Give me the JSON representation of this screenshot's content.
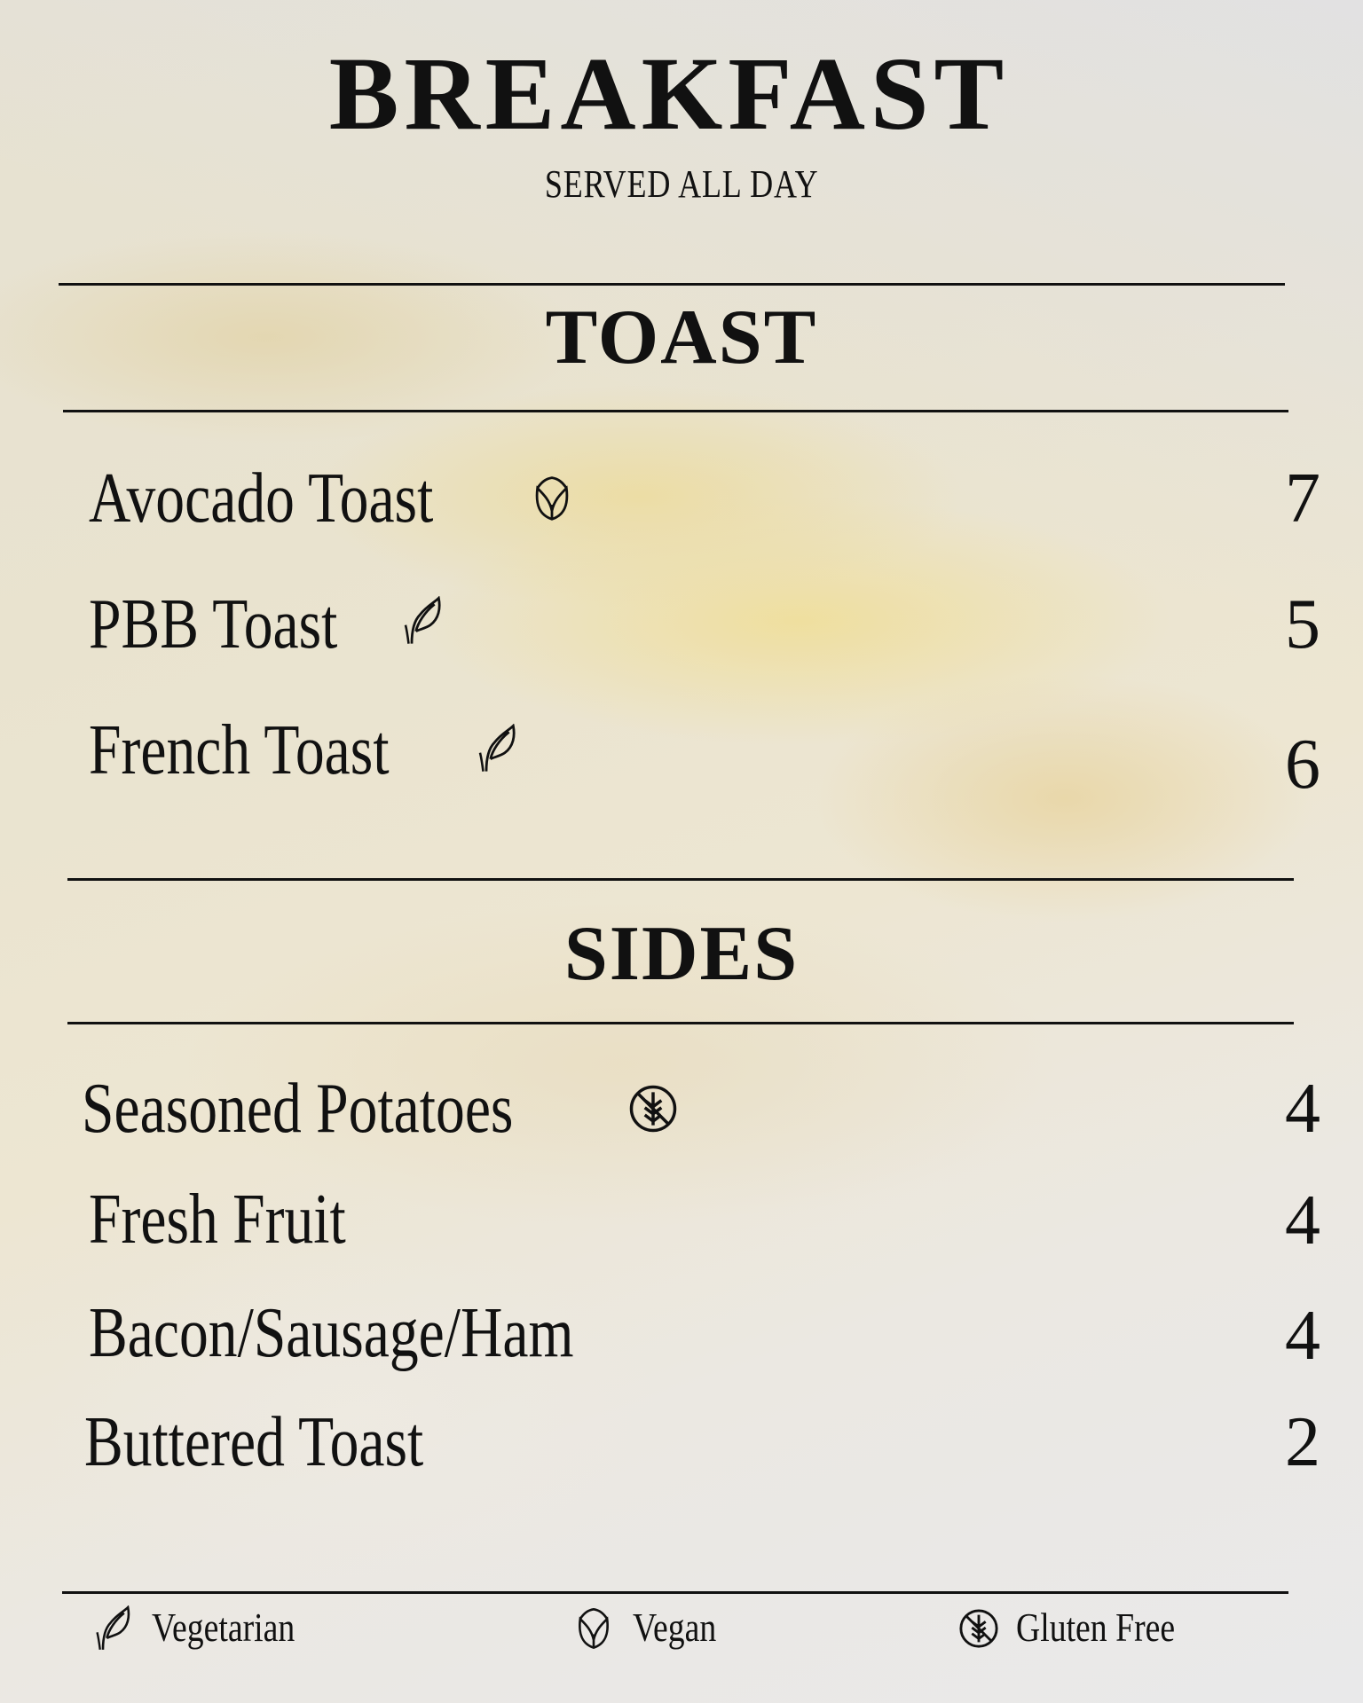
{
  "header": {
    "title": "BREAKFAST",
    "subtitle": "SERVED ALL DAY"
  },
  "sections": [
    {
      "title": "TOAST",
      "items": [
        {
          "name": "Avocado Toast",
          "price": "7",
          "icon": "vegan-icon"
        },
        {
          "name": "PBB Toast",
          "price": "5",
          "icon": "vegetarian-icon"
        },
        {
          "name": "French Toast",
          "price": "6",
          "icon": "vegetarian-icon"
        }
      ]
    },
    {
      "title": "SIDES",
      "items": [
        {
          "name": "Seasoned Potatoes",
          "price": "4",
          "icon": "gluten-free-icon"
        },
        {
          "name": "Fresh Fruit",
          "price": "4"
        },
        {
          "name": "Bacon/Sausage/Ham",
          "price": "4"
        },
        {
          "name": "Buttered Toast",
          "price": "2"
        }
      ]
    }
  ],
  "legend": [
    {
      "label": "Vegetarian",
      "icon": "vegetarian-icon"
    },
    {
      "label": "Vegan",
      "icon": "vegan-icon"
    },
    {
      "label": "Gluten Free",
      "icon": "gluten-free-icon"
    }
  ]
}
